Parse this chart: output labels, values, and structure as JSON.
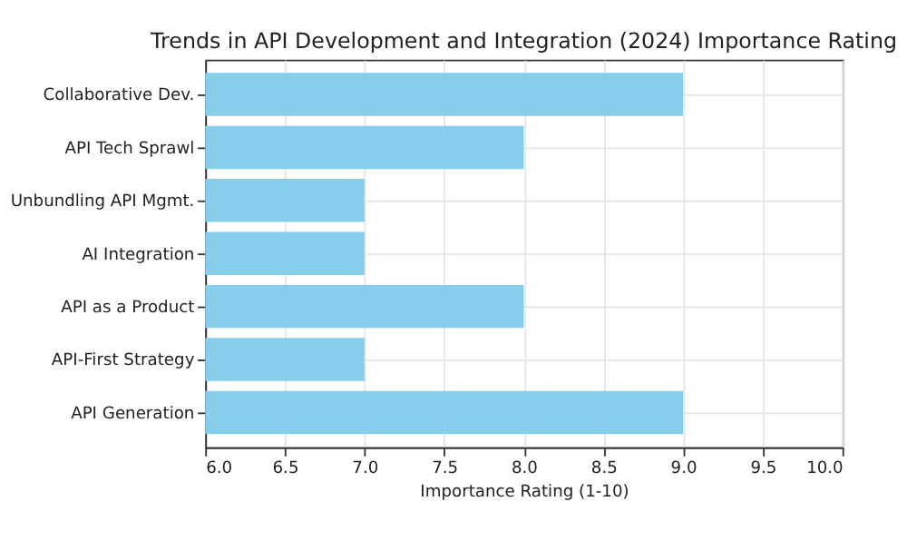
{
  "chart_data": {
    "type": "bar",
    "orientation": "horizontal",
    "title": "Trends in API Development and Integration (2024) Importance Rating",
    "xlabel": "Importance Rating (1-10)",
    "categories": [
      "Collaborative Dev.",
      "API Tech Sprawl",
      "Unbundling API Mgmt.",
      "AI Integration",
      "API as a Product",
      "API-First Strategy",
      "API Generation"
    ],
    "values": [
      9,
      8,
      7,
      7,
      8,
      7,
      9
    ],
    "color": "#87ceeb",
    "xlim": [
      6,
      10
    ],
    "xticks": [
      {
        "value": 6,
        "label": "6.0"
      },
      {
        "value": 6.5,
        "label": "6.5"
      },
      {
        "value": 7,
        "label": "7.0"
      },
      {
        "value": 7.5,
        "label": "7.5"
      },
      {
        "value": 8,
        "label": "8.0"
      },
      {
        "value": 8.5,
        "label": "8.5"
      },
      {
        "value": 9,
        "label": "9.0"
      },
      {
        "value": 9.5,
        "label": "9.5"
      },
      {
        "value": 10,
        "label": "10.0"
      }
    ],
    "grid": true
  }
}
